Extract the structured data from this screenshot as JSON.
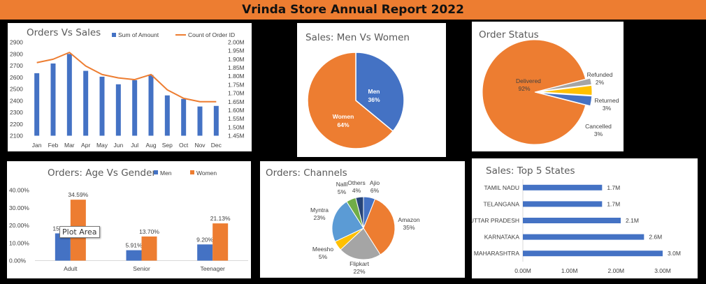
{
  "report_title": "Vrinda Store Annual Report 2022",
  "colors": {
    "banner": "#ED7D31",
    "blue": "#4472C4",
    "orange": "#ED7D31",
    "gray": "#A5A5A5",
    "gold": "#FFC000",
    "green": "#70AD47",
    "navy": "#264478"
  },
  "tooltip": "Plot Area",
  "chart_data": [
    {
      "id": "orders_vs_sales",
      "type": "bar",
      "title": "Orders Vs Sales",
      "categories": [
        "Jan",
        "Feb",
        "Mar",
        "Apr",
        "May",
        "Jun",
        "Jul",
        "Aug",
        "Sep",
        "Oct",
        "Nov",
        "Dec"
      ],
      "series": [
        {
          "name": "Sum of Amount",
          "kind": "bar",
          "axis": "left",
          "values": [
            2635,
            2718,
            2800,
            2655,
            2605,
            2540,
            2575,
            2620,
            2445,
            2415,
            2350,
            2355
          ]
        },
        {
          "name": "Count of Order ID",
          "kind": "line",
          "axis": "right",
          "values": [
            1.88,
            1.9,
            1.94,
            1.86,
            1.81,
            1.79,
            1.78,
            1.81,
            1.72,
            1.67,
            1.65,
            1.65
          ]
        }
      ],
      "ylim_left": [
        2100,
        2900
      ],
      "yticks_left": [
        "2100",
        "2200",
        "2300",
        "2400",
        "2500",
        "2600",
        "2700",
        "2800",
        "2900"
      ],
      "ylim_right": [
        1.45,
        2.0
      ],
      "yticks_right": [
        "1.45M",
        "1.50M",
        "1.55M",
        "1.60M",
        "1.65M",
        "1.70M",
        "1.75M",
        "1.80M",
        "1.85M",
        "1.90M",
        "1.95M",
        "2.00M"
      ],
      "legend_position": "top"
    },
    {
      "id": "men_vs_women",
      "type": "pie",
      "title": "Sales: Men Vs Women",
      "slices": [
        {
          "label": "Men",
          "value": 36,
          "text": "36%"
        },
        {
          "label": "Women",
          "value": 64,
          "text": "64%"
        }
      ]
    },
    {
      "id": "order_status",
      "type": "pie",
      "title": "Order Status",
      "slices": [
        {
          "label": "Delivered",
          "value": 92,
          "text": "92%"
        },
        {
          "label": "Refunded",
          "value": 2,
          "text": "2%"
        },
        {
          "label": "Returned",
          "value": 3,
          "text": "3%"
        },
        {
          "label": "Cancelled",
          "value": 3,
          "text": "3%"
        }
      ]
    },
    {
      "id": "age_vs_gender",
      "type": "bar",
      "title": "Orders: Age Vs Gender",
      "categories": [
        "Adult",
        "Senior",
        "Teenager"
      ],
      "series": [
        {
          "name": "Men",
          "values": [
            15.47,
            5.91,
            9.2
          ],
          "labels": [
            "15.47%",
            "5.91%",
            "9.20%"
          ]
        },
        {
          "name": "Women",
          "values": [
            34.59,
            13.7,
            21.13
          ],
          "labels": [
            "34.59%",
            "13.70%",
            "21.13%"
          ]
        }
      ],
      "ylim": [
        0,
        40
      ],
      "yticks": [
        "0.00%",
        "10.00%",
        "20.00%",
        "30.00%",
        "40.00%"
      ],
      "legend_position": "top"
    },
    {
      "id": "channels",
      "type": "pie",
      "title": "Orders: Channels",
      "slices": [
        {
          "label": "Ajio",
          "value": 6,
          "text": "6%"
        },
        {
          "label": "Amazon",
          "value": 35,
          "text": "35%"
        },
        {
          "label": "Flipkart",
          "value": 22,
          "text": "22%"
        },
        {
          "label": "Meesho",
          "value": 5,
          "text": "5%"
        },
        {
          "label": "Myntra",
          "value": 23,
          "text": "23%"
        },
        {
          "label": "Nalli",
          "value": 5,
          "text": "5%"
        },
        {
          "label": "Others",
          "value": 4,
          "text": "4%"
        }
      ]
    },
    {
      "id": "top_states",
      "type": "bar",
      "orientation": "horizontal",
      "title": "Sales: Top 5 States",
      "categories": [
        "TAMIL NADU",
        "TELANGANA",
        "UTTAR PRADESH",
        "KARNATAKA",
        "MAHARASHTRA"
      ],
      "values": [
        1.7,
        1.7,
        2.1,
        2.6,
        3.0
      ],
      "labels": [
        "1.7M",
        "1.7M",
        "2.1M",
        "2.6M",
        "3.0M"
      ],
      "xlim": [
        0,
        3.0
      ],
      "xticks": [
        "0.00M",
        "1.00M",
        "2.00M",
        "3.00M"
      ]
    }
  ]
}
